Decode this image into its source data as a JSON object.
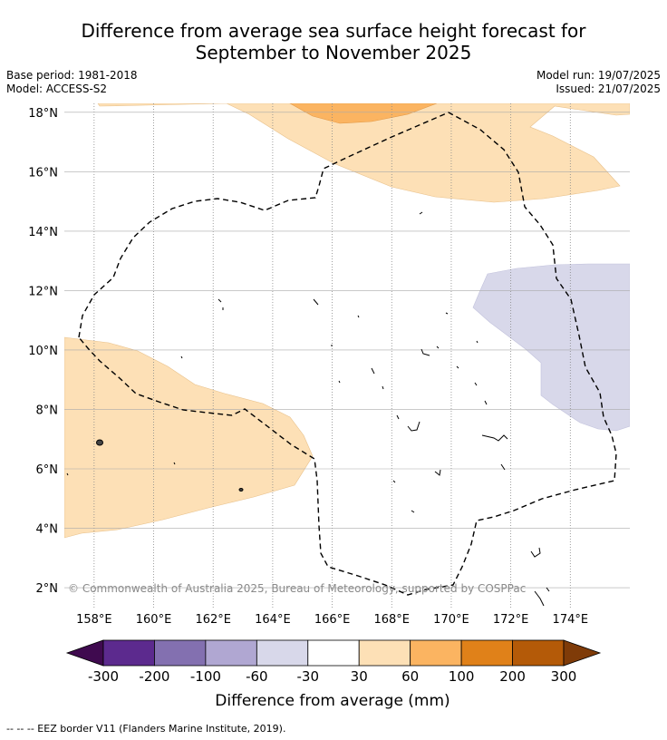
{
  "title": {
    "line1": "Difference from average sea surface height forecast for",
    "line2": "September to November 2025"
  },
  "meta": {
    "base_period": "Base period: 1981-2018",
    "model": "Model: ACCESS-S2",
    "model_run": "Model run: 19/07/2025",
    "issued": "Issued: 21/07/2025"
  },
  "map": {
    "lon_range": [
      157,
      176
    ],
    "lat_range": [
      1.3,
      18.3
    ],
    "lon_ticks": [
      "158°E",
      "160°E",
      "162°E",
      "164°E",
      "166°E",
      "168°E",
      "170°E",
      "172°E",
      "174°E"
    ],
    "lon_tick_values": [
      158,
      160,
      162,
      164,
      166,
      168,
      170,
      172,
      174
    ],
    "lat_ticks": [
      "2°N",
      "4°N",
      "6°N",
      "8°N",
      "10°N",
      "12°N",
      "14°N",
      "16°N",
      "18°N"
    ],
    "lat_tick_values": [
      2,
      4,
      6,
      8,
      10,
      12,
      14,
      16,
      18
    ],
    "gridlines": true,
    "copyright": "© Commonwealth of Australia 2025, Bureau of Meteorology, supported by COSPPac"
  },
  "colorbar": {
    "title": "Difference from average (mm)",
    "labels": [
      "-300",
      "-200",
      "-100",
      "-60",
      "-30",
      "30",
      "60",
      "100",
      "200",
      "300"
    ],
    "colors": [
      "#3f0a4f",
      "#5c2a8e",
      "#8370b0",
      "#b0a7d2",
      "#d8d8ea",
      "#ffffff",
      "#fde0b6",
      "#fbb461",
      "#e08119",
      "#b45a08",
      "#7f3b08"
    ]
  },
  "colors": {
    "light_orange": "#fde0b6",
    "mid_orange": "#fbb461",
    "light_purple": "#d8d8ea"
  },
  "footnote": "-- -- -- EEZ border V11 (Flanders Marine Institute, 2019)."
}
